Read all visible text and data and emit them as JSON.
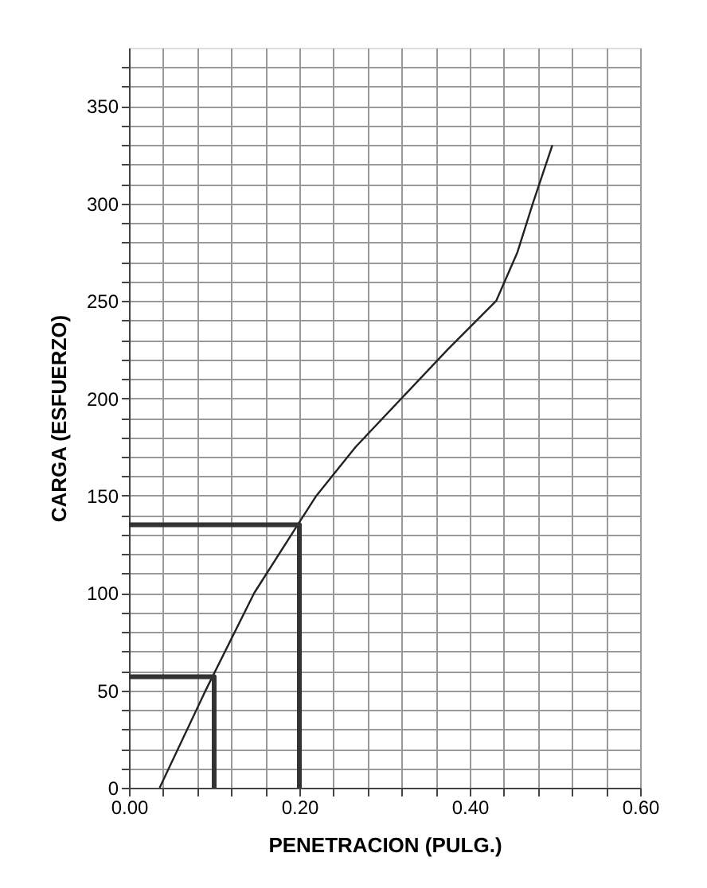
{
  "chart_data": {
    "type": "line",
    "xlabel": "PENETRACION (PULG.)",
    "ylabel": "CARGA (ESFUERZO)",
    "xlim": [
      0,
      0.6
    ],
    "ylim": [
      0,
      380
    ],
    "xticks": [
      {
        "value": 0,
        "label": "0.00"
      },
      {
        "value": 0.04,
        "label": null
      },
      {
        "value": 0.08,
        "label": null
      },
      {
        "value": 0.12,
        "label": null
      },
      {
        "value": 0.16,
        "label": null
      },
      {
        "value": 0.2,
        "label": "0.20"
      },
      {
        "value": 0.24,
        "label": null
      },
      {
        "value": 0.28,
        "label": null
      },
      {
        "value": 0.32,
        "label": null
      },
      {
        "value": 0.36,
        "label": null
      },
      {
        "value": 0.4,
        "label": "0.40"
      },
      {
        "value": 0.44,
        "label": null
      },
      {
        "value": 0.48,
        "label": null
      },
      {
        "value": 0.52,
        "label": null
      },
      {
        "value": 0.56,
        "label": null
      },
      {
        "value": 0.6,
        "label": "0.60"
      }
    ],
    "yticks": [
      0,
      {
        "value": 10,
        "label": null
      },
      {
        "value": 20,
        "label": null
      },
      {
        "value": 30,
        "label": null
      },
      {
        "value": 40,
        "label": null
      },
      50,
      {
        "value": 60,
        "label": null
      },
      {
        "value": 70,
        "label": null
      },
      {
        "value": 80,
        "label": null
      },
      {
        "value": 90,
        "label": null
      },
      100,
      {
        "value": 110,
        "label": null
      },
      {
        "value": 120,
        "label": null
      },
      {
        "value": 130,
        "label": null
      },
      {
        "value": 140,
        "label": null
      },
      150,
      {
        "value": 160,
        "label": null
      },
      {
        "value": 170,
        "label": null
      },
      {
        "value": 180,
        "label": null
      },
      {
        "value": 190,
        "label": null
      },
      200,
      {
        "value": 210,
        "label": null
      },
      {
        "value": 220,
        "label": null
      },
      {
        "value": 230,
        "label": null
      },
      {
        "value": 240,
        "label": null
      },
      250,
      {
        "value": 260,
        "label": null
      },
      {
        "value": 270,
        "label": null
      },
      {
        "value": 280,
        "label": null
      },
      {
        "value": 290,
        "label": null
      },
      300,
      {
        "value": 310,
        "label": null
      },
      {
        "value": 320,
        "label": null
      },
      {
        "value": 330,
        "label": null
      },
      {
        "value": 340,
        "label": null
      },
      350,
      {
        "value": 360,
        "label": null
      },
      {
        "value": 370,
        "label": null
      }
    ],
    "grid": true,
    "marker": "none",
    "line_style": "solid",
    "series": [
      {
        "color": "#222222",
        "x": [
          0.036,
          0.09,
          0.147,
          0.198,
          0.22,
          0.266,
          0.32,
          0.374,
          0.431,
          0.456,
          0.474,
          0.497
        ],
        "values": [
          0,
          50,
          100,
          135,
          150,
          175,
          200,
          225,
          250,
          275,
          300,
          330
        ]
      },
      {
        "color": "#333333",
        "x": [
          0,
          0.1,
          0.1
        ],
        "values": [
          57,
          57,
          0
        ]
      },
      {
        "color": "#333333",
        "x": [
          0,
          0.2,
          0.2
        ],
        "values": [
          135,
          135,
          0
        ]
      }
    ]
  }
}
